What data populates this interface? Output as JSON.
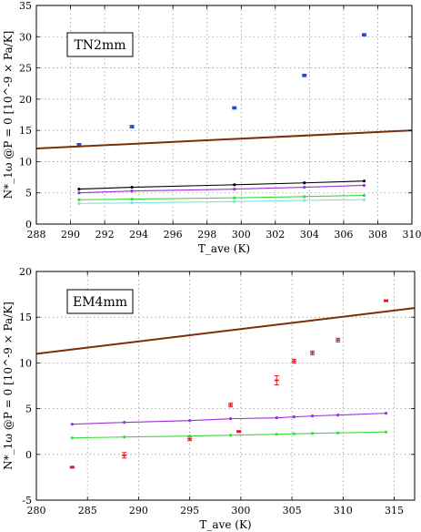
{
  "chart_data": [
    {
      "type": "scatter",
      "box_label": "TN2mm",
      "xlabel": "T_ave (K)",
      "ylabel": "N*_1ω @P = 0 [10^-9 × Pa/K]",
      "xlim": [
        288,
        310
      ],
      "ylim": [
        0,
        35
      ],
      "xticks": [
        288,
        290,
        292,
        294,
        296,
        298,
        300,
        302,
        304,
        306,
        308,
        310
      ],
      "yticks": [
        0,
        5,
        10,
        15,
        20,
        25,
        30,
        35
      ],
      "grid": true,
      "series": [
        {
          "color": "#1f3fd6",
          "style": "errorbar",
          "x": [
            290.5,
            293.6,
            299.6,
            303.7,
            307.2
          ],
          "values": [
            12.7,
            15.6,
            18.6,
            23.8,
            30.3
          ],
          "err": [
            0.2,
            0.2,
            0.2,
            0.2,
            0.2
          ]
        },
        {
          "color": "#7a2e08",
          "style": "line",
          "x": [
            288,
            310
          ],
          "values": [
            12.1,
            15.0
          ]
        },
        {
          "color": "#000000",
          "style": "line-markers",
          "x": [
            290.5,
            293.6,
            299.6,
            303.7,
            307.2
          ],
          "values": [
            5.6,
            5.9,
            6.3,
            6.6,
            6.9
          ]
        },
        {
          "color": "#9b30d9",
          "style": "line-markers",
          "x": [
            290.5,
            293.6,
            299.6,
            303.7,
            307.2
          ],
          "values": [
            5.0,
            5.3,
            5.6,
            5.9,
            6.2
          ]
        },
        {
          "color": "#3adb3a",
          "style": "line-markers",
          "x": [
            290.5,
            293.6,
            299.6,
            303.7,
            307.2
          ],
          "values": [
            3.9,
            4.0,
            4.2,
            4.4,
            4.6
          ]
        },
        {
          "color": "#7fe3e3",
          "style": "line-markers",
          "x": [
            290.5,
            293.6,
            299.6,
            303.7,
            307.2
          ],
          "values": [
            3.3,
            3.4,
            3.6,
            3.8,
            3.9
          ]
        }
      ]
    },
    {
      "type": "scatter",
      "box_label": "EM4mm",
      "xlabel": "T_ave (K)",
      "ylabel": "N*_1ω @P = 0 [10^-9 × Pa/K]",
      "xlim": [
        280,
        317
      ],
      "ylim": [
        -5,
        20
      ],
      "xticks": [
        280,
        285,
        290,
        295,
        300,
        305,
        310,
        315
      ],
      "yticks": [
        -5,
        0,
        5,
        10,
        15,
        20
      ],
      "grid": true,
      "series": [
        {
          "color": "#e01a1a",
          "style": "errorbar",
          "x": [
            283.5,
            288.6,
            295.0,
            299.0,
            299.8,
            303.5,
            305.2,
            307.0,
            309.5,
            314.2
          ],
          "values": [
            -1.4,
            -0.1,
            1.7,
            5.4,
            2.5,
            8.1,
            10.2,
            11.1,
            12.5,
            16.8
          ],
          "err": [
            0.1,
            0.3,
            0.2,
            0.2,
            0.1,
            0.5,
            0.2,
            0.2,
            0.2,
            0.1
          ]
        },
        {
          "color": "#7a2e08",
          "style": "line",
          "x": [
            280,
            317
          ],
          "values": [
            11.0,
            16.0
          ]
        },
        {
          "color": "#9b30d9",
          "style": "line-markers",
          "x": [
            283.5,
            288.6,
            295.0,
            299.0,
            303.5,
            305.2,
            307.0,
            309.5,
            314.2
          ],
          "values": [
            3.3,
            3.5,
            3.7,
            3.9,
            4.0,
            4.1,
            4.2,
            4.3,
            4.5
          ]
        },
        {
          "color": "#3adb3a",
          "style": "line-markers",
          "x": [
            283.5,
            288.6,
            295.0,
            299.0,
            303.5,
            305.2,
            307.0,
            309.5,
            314.2
          ],
          "values": [
            1.8,
            1.9,
            2.0,
            2.1,
            2.2,
            2.25,
            2.3,
            2.35,
            2.45
          ]
        }
      ]
    }
  ]
}
